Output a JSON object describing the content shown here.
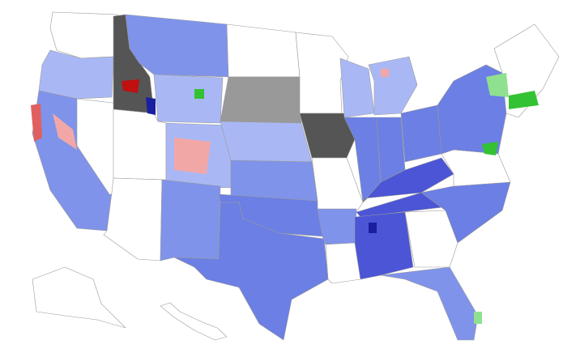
{
  "map": {
    "colors": {
      "none": "#ffffff",
      "light_blue": "#a9b8f5",
      "mid_blue": "#7f93ea",
      "blue": "#6b7fe4",
      "dark_blue": "#4b55d6",
      "navy": "#1a1fa0",
      "pink": "#f2a7a7",
      "red": "#e06060",
      "dark_red": "#c01010",
      "light_green": "#8fe08f",
      "green": "#33c233",
      "light_gray": "#cccccc",
      "gray": "#999999",
      "dark_gray": "#555555"
    }
  }
}
